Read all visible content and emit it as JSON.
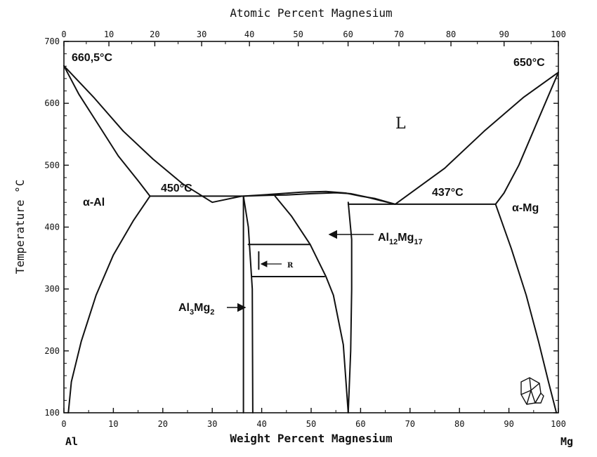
{
  "chart_data": {
    "type": "line",
    "title": "",
    "top_axis": {
      "label": "Atomic Percent Magnesium",
      "ticks": [
        "0",
        "10",
        "20",
        "30",
        "40",
        "50",
        "60",
        "70",
        "80",
        "90",
        "100"
      ]
    },
    "xlabel": "Weight Percent Magnesium",
    "ylabel": "Temperature °C",
    "xlim": [
      0,
      100
    ],
    "ylim": [
      100,
      700
    ],
    "x_ticks": [
      "0",
      "10",
      "20",
      "30",
      "40",
      "50",
      "60",
      "70",
      "80",
      "90",
      "100"
    ],
    "y_ticks": [
      "100",
      "200",
      "300",
      "400",
      "500",
      "600",
      "700"
    ],
    "corner_labels": {
      "left": "Al",
      "right": "Mg"
    },
    "grid": false,
    "series": [
      {
        "points": [
          [
            0,
            660.5
          ],
          [
            6,
            610
          ],
          [
            12,
            555
          ],
          [
            18,
            510
          ],
          [
            24,
            470
          ],
          [
            30,
            440
          ],
          [
            36,
            450
          ]
        ]
      },
      {
        "points": [
          [
            0,
            660.5
          ],
          [
            3,
            615
          ],
          [
            7,
            565
          ],
          [
            11,
            515
          ],
          [
            15,
            475
          ],
          [
            17.4,
            450
          ]
        ]
      },
      {
        "points": [
          [
            17.4,
            450
          ],
          [
            14,
            410
          ],
          [
            10,
            355
          ],
          [
            6.5,
            290
          ],
          [
            3.5,
            215
          ],
          [
            1.5,
            150
          ],
          [
            0.9,
            100
          ]
        ]
      },
      {
        "points": [
          [
            17.4,
            450
          ],
          [
            36.3,
            450
          ]
        ]
      },
      {
        "points": [
          [
            36.3,
            450
          ],
          [
            42,
            453
          ],
          [
            48,
            456.5
          ],
          [
            53,
            457.5
          ],
          [
            57,
            455
          ],
          [
            60,
            450
          ],
          [
            63,
            446
          ],
          [
            67,
            437
          ]
        ]
      },
      {
        "points": [
          [
            36.3,
            450
          ],
          [
            40,
            451
          ],
          [
            45,
            452
          ],
          [
            50,
            454
          ],
          [
            55,
            455.5
          ],
          [
            58,
            454
          ],
          [
            61,
            449
          ],
          [
            64,
            443
          ],
          [
            67,
            437
          ]
        ]
      },
      {
        "points": [
          [
            36.3,
            450
          ],
          [
            36.3,
            100
          ]
        ]
      },
      {
        "points": [
          [
            36.3,
            450
          ],
          [
            37.3,
            400
          ],
          [
            38.1,
            300
          ],
          [
            38.2,
            100
          ]
        ]
      },
      {
        "points": [
          [
            42.7,
            450
          ],
          [
            46,
            418
          ],
          [
            49.8,
            372
          ],
          [
            53,
            320
          ],
          [
            54.5,
            290
          ],
          [
            56.5,
            210
          ],
          [
            57.5,
            100
          ]
        ]
      },
      {
        "points": [
          [
            57.5,
            440
          ],
          [
            58.2,
            380
          ],
          [
            58.2,
            300
          ],
          [
            58.0,
            200
          ],
          [
            57.5,
            100
          ]
        ]
      },
      {
        "points": [
          [
            37.3,
            372
          ],
          [
            49.8,
            372
          ]
        ]
      },
      {
        "points": [
          [
            38.1,
            320
          ],
          [
            52.7,
            320
          ]
        ]
      },
      {
        "points": [
          [
            39.4,
            360
          ],
          [
            39.4,
            332
          ]
        ]
      },
      {
        "points": [
          [
            57.5,
            437
          ],
          [
            87.3,
            437
          ]
        ]
      },
      {
        "points": [
          [
            100,
            650
          ],
          [
            93,
            610
          ],
          [
            85,
            555
          ],
          [
            77,
            495
          ],
          [
            67,
            437
          ]
        ]
      },
      {
        "points": [
          [
            100,
            650
          ],
          [
            96,
            575
          ],
          [
            92,
            500
          ],
          [
            89,
            455
          ],
          [
            87.3,
            437
          ]
        ]
      },
      {
        "points": [
          [
            87.3,
            437
          ],
          [
            90.5,
            365
          ],
          [
            93.5,
            290
          ],
          [
            96,
            215
          ],
          [
            98,
            150
          ],
          [
            99.6,
            100
          ]
        ]
      }
    ],
    "annotations": {
      "temp_al": "660,5°C",
      "temp_mg": "650°C",
      "liquid": "L",
      "eutectic_left": "450°C",
      "eutectic_right": "437°C",
      "phase_al": "α-Al",
      "phase_mg": "α-Mg",
      "r_phase": "R",
      "al12mg17": {
        "base1": "Al",
        "sub1": "12",
        "base2": "Mg",
        "sub2": "17"
      },
      "al3mg2": {
        "base1": "Al",
        "sub1": "3",
        "base2": "Mg",
        "sub2": "2"
      }
    },
    "line_color": "#111111"
  }
}
